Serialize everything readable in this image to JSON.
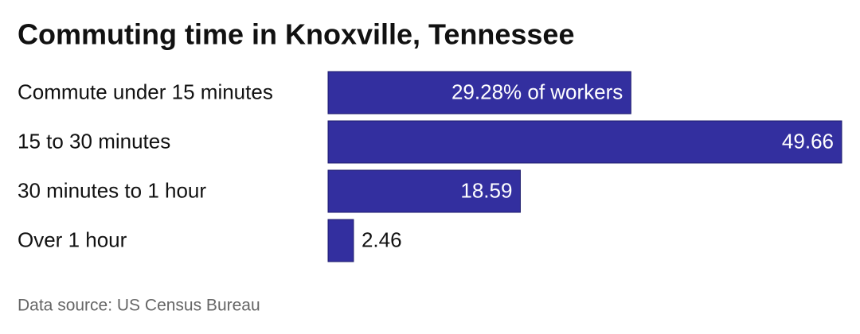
{
  "chart_data": {
    "type": "bar",
    "orientation": "horizontal",
    "title": "Commuting time in Knoxville, Tennessee",
    "categories": [
      "Commute under 15 minutes",
      "15 to 30 minutes",
      "30 minutes to 1 hour",
      "Over 1 hour"
    ],
    "values": [
      29.28,
      49.66,
      18.59,
      2.46
    ],
    "value_labels": [
      "29.28% of workers",
      "49.66",
      "18.59",
      "2.46"
    ],
    "color": "#332f9f",
    "source": "Data source: US Census Bureau"
  }
}
